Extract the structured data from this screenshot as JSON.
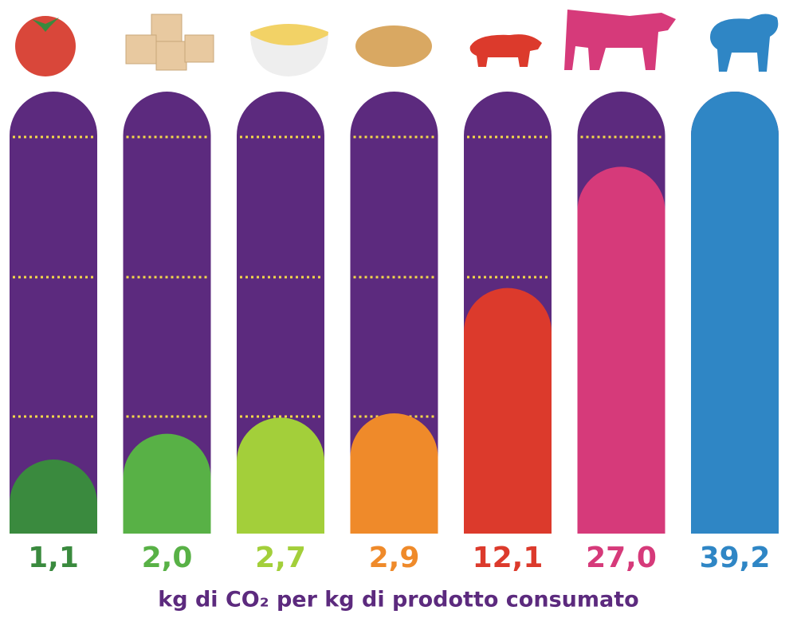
{
  "chart_data": {
    "type": "capsule-bar",
    "title": "kg di CO₂ per kg di prodotto consumato",
    "values": [
      1.1,
      2.0,
      2.7,
      2.9,
      12.1,
      27.0,
      39.2
    ],
    "value_labels": [
      "1,1",
      "2,0",
      "2,7",
      "2,9",
      "12,1",
      "27,0",
      "39,2"
    ],
    "colors": [
      "#3a8a3e",
      "#58b146",
      "#a3cf3a",
      "#ef8a2a",
      "#dc3a2c",
      "#d63a7a",
      "#2f86c5"
    ],
    "background_color": "#5c2a7e",
    "yscale": "sqrt",
    "ylim": [
      0,
      39.2
    ]
  }
}
